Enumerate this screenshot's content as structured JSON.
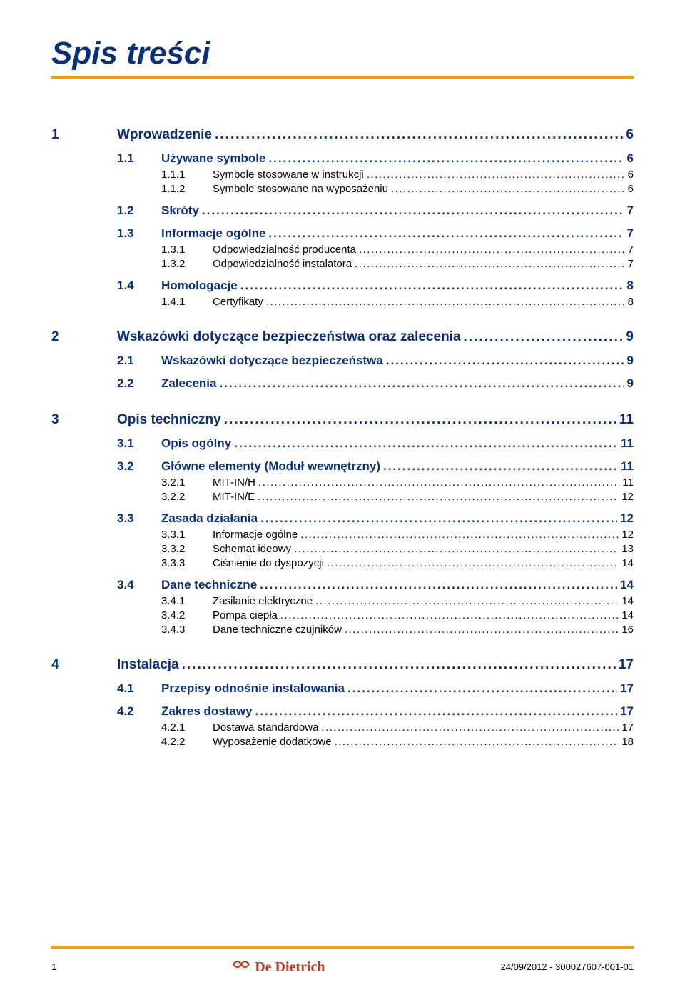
{
  "title": "Spis treści",
  "colors": {
    "heading": "#0a2f7a",
    "rule": "#f39c12",
    "body": "#000000",
    "logo": "#c0392b",
    "background": "#ffffff"
  },
  "leader_char": ".",
  "toc": [
    {
      "num": "1",
      "label": "Wprowadzenie",
      "page": "6",
      "children": [
        {
          "num": "1.1",
          "label": "Używane symbole",
          "page": "6",
          "children": [
            {
              "num": "1.1.1",
              "label": "Symbole stosowane w instrukcji",
              "page": "6"
            },
            {
              "num": "1.1.2",
              "label": "Symbole stosowane na wyposażeniu",
              "page": "6"
            }
          ]
        },
        {
          "num": "1.2",
          "label": "Skróty",
          "page": "7",
          "children": []
        },
        {
          "num": "1.3",
          "label": "Informacje ogólne",
          "page": "7",
          "children": [
            {
              "num": "1.3.1",
              "label": "Odpowiedzialność producenta",
              "page": "7"
            },
            {
              "num": "1.3.2",
              "label": "Odpowiedzialność instalatora",
              "page": "7"
            }
          ]
        },
        {
          "num": "1.4",
          "label": "Homologacje",
          "page": "8",
          "children": [
            {
              "num": "1.4.1",
              "label": "Certyfikaty",
              "page": "8"
            }
          ]
        }
      ]
    },
    {
      "num": "2",
      "label": "Wskazówki dotyczące bezpieczeństwa oraz zalecenia",
      "page": "9",
      "children": [
        {
          "num": "2.1",
          "label": "Wskazówki dotyczące bezpieczeństwa",
          "page": "9",
          "children": []
        },
        {
          "num": "2.2",
          "label": "Zalecenia",
          "page": "9",
          "children": []
        }
      ]
    },
    {
      "num": "3",
      "label": "Opis techniczny",
      "page": "11",
      "children": [
        {
          "num": "3.1",
          "label": "Opis ogólny",
          "page": "11",
          "children": []
        },
        {
          "num": "3.2",
          "label": "Główne elementy (Moduł wewnętrzny)",
          "page": "11",
          "children": [
            {
              "num": "3.2.1",
              "label": "MIT-IN/H",
              "page": "11"
            },
            {
              "num": "3.2.2",
              "label": "MIT-IN/E",
              "page": "12"
            }
          ]
        },
        {
          "num": "3.3",
          "label": "Zasada działania",
          "page": "12",
          "children": [
            {
              "num": "3.3.1",
              "label": "Informacje ogólne",
              "page": "12"
            },
            {
              "num": "3.3.2",
              "label": "Schemat ideowy",
              "page": "13"
            },
            {
              "num": "3.3.3",
              "label": "Ciśnienie do dyspozycji",
              "page": "14"
            }
          ]
        },
        {
          "num": "3.4",
          "label": "Dane techniczne",
          "page": "14",
          "children": [
            {
              "num": "3.4.1",
              "label": "Zasilanie elektryczne",
              "page": "14"
            },
            {
              "num": "3.4.2",
              "label": "Pompa ciepła",
              "page": "14"
            },
            {
              "num": "3.4.3",
              "label": "Dane techniczne czujników",
              "page": "16"
            }
          ]
        }
      ]
    },
    {
      "num": "4",
      "label": "Instalacja",
      "page": "17",
      "children": [
        {
          "num": "4.1",
          "label": "Przepisy odnośnie instalowania",
          "page": "17",
          "children": []
        },
        {
          "num": "4.2",
          "label": "Zakres dostawy",
          "page": "17",
          "children": [
            {
              "num": "4.2.1",
              "label": "Dostawa standardowa",
              "page": "17"
            },
            {
              "num": "4.2.2",
              "label": "Wyposażenie dodatkowe",
              "page": "18"
            }
          ]
        }
      ]
    }
  ],
  "footer": {
    "page_number": "1",
    "logo_text": "De Dietrich",
    "doc_info": "24/09/2012  - 300027607-001-01"
  }
}
